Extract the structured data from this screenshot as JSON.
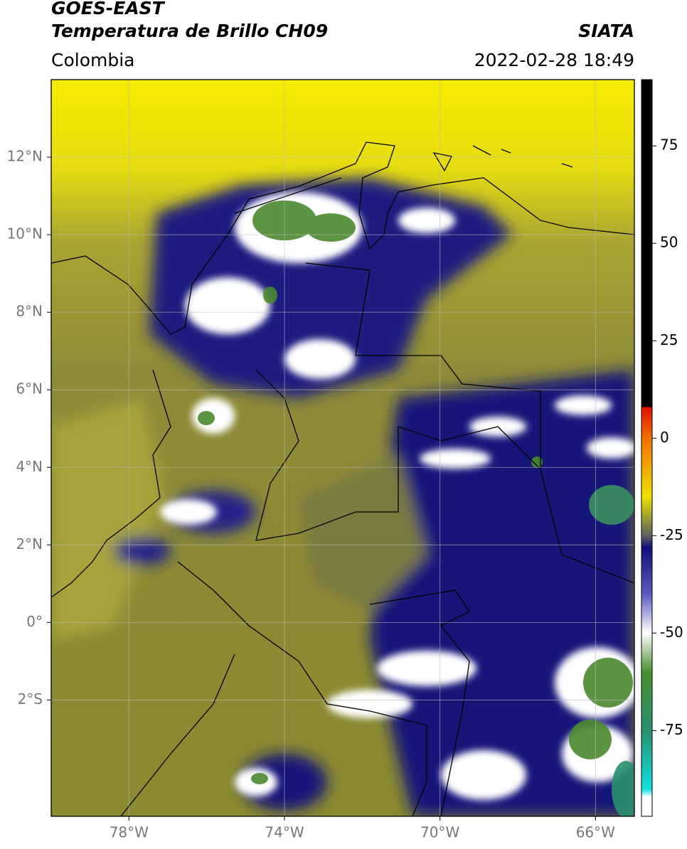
{
  "header": {
    "title": "GOES-EAST",
    "subtitle": "Temperatura de Brillo CH09",
    "source": "SIATA",
    "region": "Colombia",
    "datetime": "2022-02-28 18:49"
  },
  "map": {
    "lat_range": [
      -5,
      14
    ],
    "lon_range": [
      -80,
      -65
    ],
    "lat_ticks": [
      {
        "value": 12,
        "label": "12°N"
      },
      {
        "value": 10,
        "label": "10°N"
      },
      {
        "value": 8,
        "label": "8°N"
      },
      {
        "value": 6,
        "label": "6°N"
      },
      {
        "value": 4,
        "label": "4°N"
      },
      {
        "value": 2,
        "label": "2°N"
      },
      {
        "value": 0,
        "label": "0°"
      },
      {
        "value": -2,
        "label": "2°S"
      }
    ],
    "lon_ticks": [
      {
        "value": -78,
        "label": "78°W"
      },
      {
        "value": -74,
        "label": "74°W"
      },
      {
        "value": -70,
        "label": "70°W"
      },
      {
        "value": -66,
        "label": "66°W"
      }
    ]
  },
  "colorbar": {
    "range": [
      -97,
      92
    ],
    "ticks": [
      75,
      50,
      25,
      0,
      -25,
      -50,
      -75
    ]
  }
}
